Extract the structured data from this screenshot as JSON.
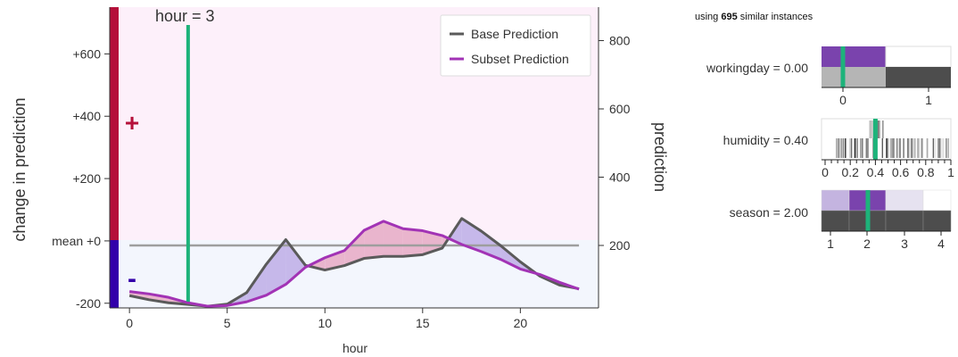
{
  "header": {
    "instances_prefix": "using",
    "instances_count": "695",
    "instances_suffix": "similar instances"
  },
  "colors": {
    "positive": "#b5103a",
    "negative": "#3300aa",
    "pos_region": "#fdf0fa",
    "neg_region": "#f3f6fd",
    "base_line": "#5a5a5a",
    "subset_line": "#a233b5",
    "fill_subset_above": "#e9b5cd",
    "fill_base_above": "#c6b8ea",
    "mean_line": "#9e9e9e",
    "selection": "#1db37a"
  },
  "chart_data": [
    {
      "type": "line",
      "xlabel": "hour",
      "ylabel_left": "change in prediction",
      "ylabel_right": "prediction",
      "xlim": [
        -0.6,
        24
      ],
      "ylim_left": [
        -215,
        750
      ],
      "ylim_right": [
        17,
        898
      ],
      "mean_value": 200,
      "xticks": [
        0,
        5,
        10,
        15,
        20
      ],
      "yticks_left": [
        {
          "value": 600,
          "label": "+600"
        },
        {
          "value": 400,
          "label": "+400"
        },
        {
          "value": 200,
          "label": "+200"
        },
        {
          "value": 0,
          "label": "mean +0"
        },
        {
          "value": -200,
          "label": "-200"
        }
      ],
      "yticks_right": [
        800,
        600,
        400,
        200
      ],
      "plus_label": "+",
      "minus_label": "-",
      "selection": {
        "value": 3,
        "label": "hour = 3"
      },
      "legend_position": "top-right",
      "x": [
        0,
        1,
        2,
        3,
        4,
        5,
        6,
        7,
        8,
        9,
        10,
        11,
        12,
        13,
        14,
        15,
        16,
        17,
        18,
        19,
        20,
        21,
        22,
        23
      ],
      "series": [
        {
          "name": "Base Prediction",
          "values": [
            53,
            41,
            32,
            27,
            22,
            28,
            62,
            145,
            217,
            142,
            128,
            141,
            162,
            168,
            168,
            173,
            192,
            279,
            242,
            199,
            152,
            110,
            84,
            73
          ]
        },
        {
          "name": "Subset Prediction",
          "values": [
            65,
            58,
            48,
            32,
            22,
            24,
            35,
            54,
            86,
            136,
            164,
            185,
            244,
            271,
            249,
            243,
            229,
            203,
            182,
            159,
            131,
            115,
            92,
            72
          ]
        }
      ]
    },
    {
      "type": "bar",
      "label": "workingday = 0.00",
      "xticks": [
        "0",
        "1"
      ],
      "selected_value": 0,
      "categories": [
        0,
        1
      ],
      "subset_share": [
        1.0,
        0.0
      ],
      "base_share": [
        0.32,
        0.68
      ]
    },
    {
      "type": "histogram",
      "label": "humidity = 0.40",
      "xticks": [
        "0",
        "0.2",
        "0.4",
        "0.6",
        "0.8",
        "1"
      ],
      "selected_value": 0.4,
      "subset_range": [
        0.34,
        0.46
      ],
      "base_range": [
        0.08,
        1.0
      ]
    },
    {
      "type": "bar",
      "label": "season = 2.00",
      "xticks": [
        "1",
        "2",
        "3",
        "4"
      ],
      "selected_value": 2,
      "categories": [
        1,
        2,
        3,
        4
      ],
      "subset_share": [
        0.32,
        0.42,
        0.26,
        0.0
      ],
      "base_share": [
        0.25,
        0.25,
        0.25,
        0.25
      ]
    }
  ]
}
